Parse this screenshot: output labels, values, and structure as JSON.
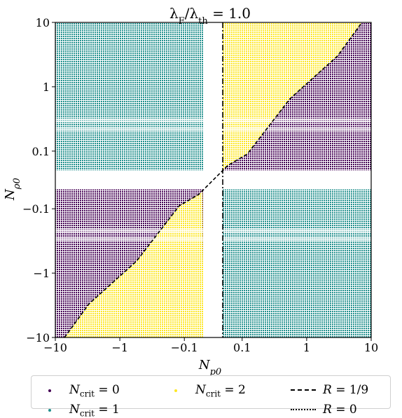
{
  "chart_data": {
    "type": "scatter",
    "title": "λF/λth = 1.0",
    "title_parts": {
      "lambda": "λ",
      "sub1": "F",
      "slash": "/λ",
      "sub2": "th",
      "rest": " = 1.0"
    },
    "xlabel": "Np0",
    "xlabel_parts": {
      "main": "N",
      "sub": "p0"
    },
    "ylabel": "Nρ0",
    "ylabel_parts": {
      "main": "N",
      "sub": "ρ0"
    },
    "axis_scale": "symlog",
    "xlim": [
      -10,
      10
    ],
    "ylim": [
      -10,
      10
    ],
    "xticks": [
      "−10",
      "−1",
      "−0.1",
      "0.1",
      "1",
      "10"
    ],
    "yticks": [
      "10",
      "1",
      "0.1",
      "−0.1",
      "−1",
      "−10"
    ],
    "tick_values": [
      -10,
      -1,
      -0.1,
      0.1,
      1,
      10
    ],
    "colors": {
      "Ncrit0": "#440154",
      "Ncrit1": "#21908d",
      "Ncrit2": "#fde725"
    },
    "regions": [
      {
        "quadrant": "top-left",
        "dominant": 1
      },
      {
        "quadrant": "bottom-right",
        "dominant": 1
      },
      {
        "quadrant": "top-right",
        "note": "Ncrit=2 above boundary, Ncrit=0 below"
      },
      {
        "quadrant": "bottom-left",
        "note": "Ncrit=0 above boundary, Ncrit=2 below"
      }
    ],
    "boundary_curve": {
      "name": "R = 1/9",
      "x": [
        -7.2,
        -3.0,
        -0.55,
        -0.12,
        -0.06,
        0.06,
        0.12,
        0.55,
        3.0,
        7.2
      ],
      "y": [
        -10,
        -3.0,
        -0.65,
        -0.09,
        -0.06,
        0.06,
        0.09,
        0.65,
        3.0,
        10
      ]
    },
    "vertical_line": {
      "name": "R = 0",
      "x": 0
    },
    "legend": [
      {
        "key": "Ncrit0",
        "text_main": "N",
        "text_sub": "crit",
        "text_rest": " = 0",
        "marker": "dot",
        "color": "#440154"
      },
      {
        "key": "Ncrit2",
        "text_main": "N",
        "text_sub": "crit",
        "text_rest": " = 2",
        "marker": "dot",
        "color": "#fde725"
      },
      {
        "key": "R19",
        "text_main": "R",
        "text_sub": "",
        "text_rest": " = 1/9",
        "marker": "dashed",
        "color": "#000000"
      },
      {
        "key": "Ncrit1",
        "text_main": "N",
        "text_sub": "crit",
        "text_rest": " = 1",
        "marker": "dot",
        "color": "#21908d"
      },
      {
        "key": "R0",
        "text_main": "R",
        "text_sub": "",
        "text_rest": " = 0",
        "marker": "dashdot",
        "color": "#000000"
      }
    ],
    "legend_placement": "bottom"
  }
}
